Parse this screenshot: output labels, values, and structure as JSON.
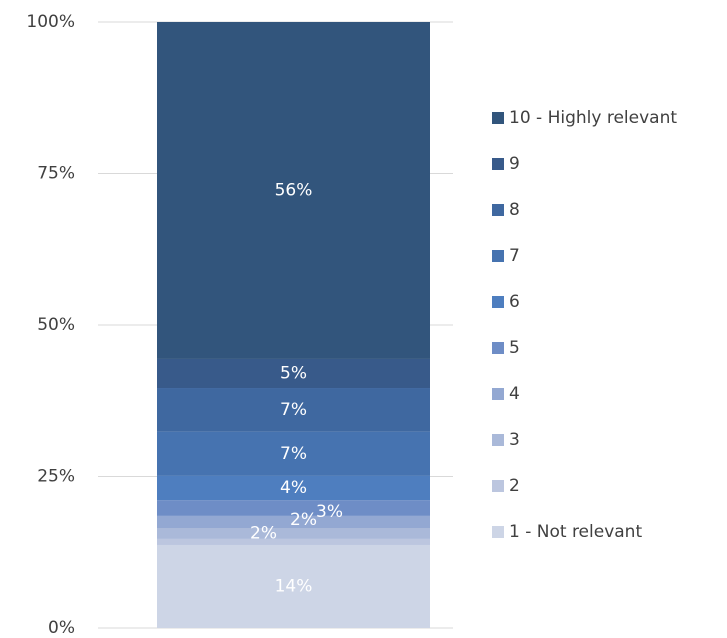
{
  "chart_data": {
    "type": "stacked_bar",
    "categories": [
      null
    ],
    "ylim": [
      0,
      100
    ],
    "yticks": [
      {
        "value": 0,
        "label": "0%"
      },
      {
        "value": 25,
        "label": "25%"
      },
      {
        "value": 50,
        "label": "50%"
      },
      {
        "value": 75,
        "label": "75%"
      },
      {
        "value": 100,
        "label": "100%"
      }
    ],
    "grid": true,
    "legend": "right",
    "series": [
      {
        "name": "1 - Not relevant",
        "color": "#cdd5e6",
        "values": [
          13.7
        ],
        "value_labels": [
          "14%"
        ]
      },
      {
        "name": "2",
        "color": "#bcc6df",
        "values": [
          1
        ]
      },
      {
        "name": "3",
        "color": "#aab9d9",
        "values": [
          1.8
        ],
        "value_labels": [
          "2%"
        ]
      },
      {
        "name": "4",
        "color": "#93a8d2",
        "values": [
          2
        ],
        "value_labels": [
          "2%"
        ]
      },
      {
        "name": "5",
        "color": "#6e8dc6",
        "values": [
          2.6
        ],
        "value_labels": [
          "3%"
        ]
      },
      {
        "name": "6",
        "color": "#4e7ebf",
        "values": [
          4
        ],
        "value_labels": [
          "4%"
        ]
      },
      {
        "name": "7",
        "color": "#4673b0",
        "values": [
          7.3
        ],
        "value_labels": [
          "7%"
        ]
      },
      {
        "name": "8",
        "color": "#3f68a0",
        "values": [
          7.2
        ],
        "value_labels": [
          "7%"
        ]
      },
      {
        "name": "9",
        "color": "#385a8a",
        "values": [
          4.8
        ],
        "value_labels": [
          "5%"
        ]
      },
      {
        "name": "10 - Highly relevant",
        "color": "#32557c",
        "values": [
          55.6
        ],
        "value_labels": [
          "56%"
        ]
      }
    ]
  }
}
